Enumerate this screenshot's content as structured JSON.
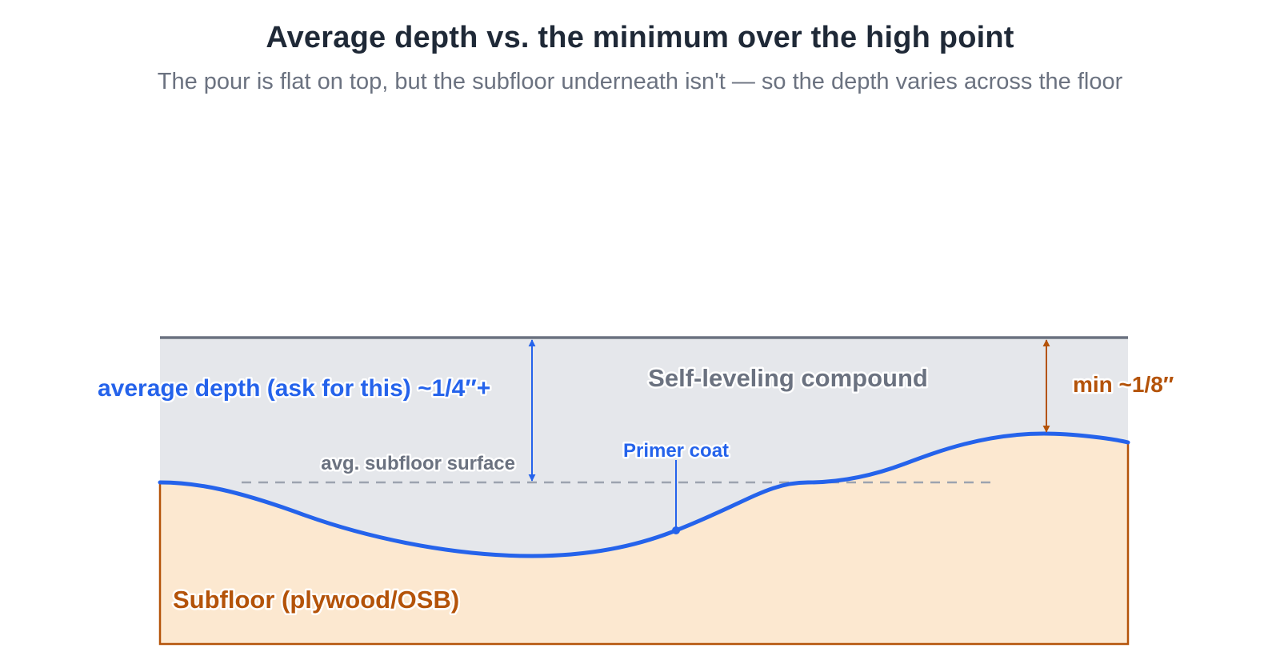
{
  "title": "Average depth vs. the minimum over the high point",
  "subtitle": "The pour is flat on top, but the subfloor underneath isn't — so the depth varies across the floor",
  "labels": {
    "compound": "Self-leveling compound",
    "subfloor": "Subfloor (plywood/OSB)",
    "avg_surface": "avg. subfloor surface",
    "primer": "Primer coat",
    "average_depth": "average depth (ask for this) ~1/4″+",
    "min_depth": "min ~1/8″"
  },
  "colors": {
    "compound_fill": "#e5e7eb",
    "top_line": "#6b7280",
    "subfloor_fill": "#fce8d0",
    "subfloor_stroke": "#b45309",
    "primer": "#2563eb",
    "average_depth": "#2563eb",
    "min_depth": "#b45309",
    "avg_line": "#9ca3af",
    "compound_text": "#6b7280",
    "title": "#1f2937",
    "subtitle": "#6b7280"
  }
}
